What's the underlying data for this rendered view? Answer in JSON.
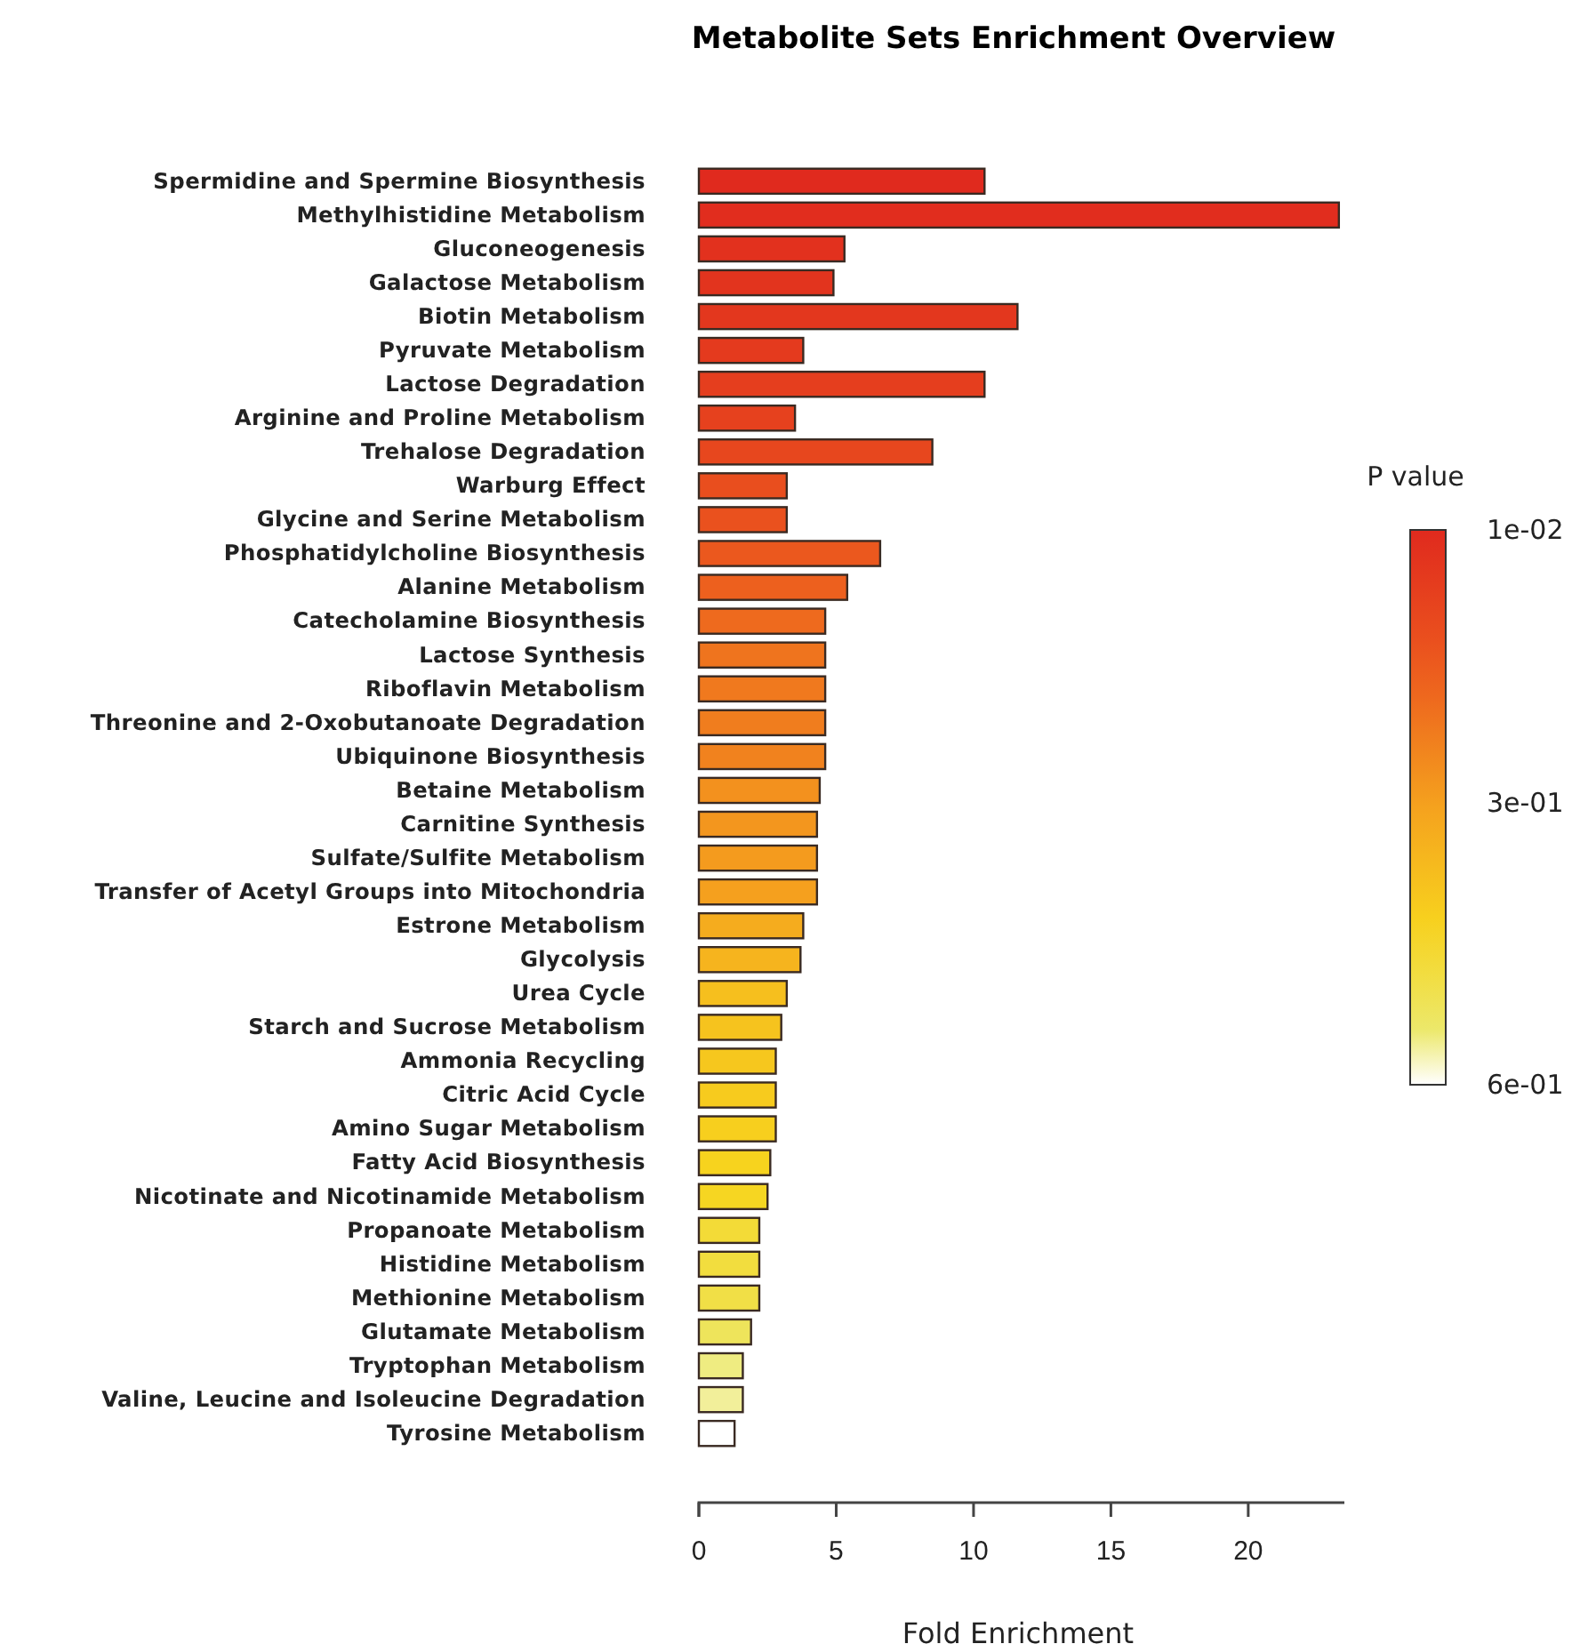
{
  "chart_data": {
    "type": "bar",
    "orientation": "horizontal",
    "title": "Metabolite Sets Enrichment Overview",
    "xlabel": "Fold Enrichment",
    "legend_title": "P value",
    "categories": [
      "Spermidine and Spermine Biosynthesis",
      "Methylhistidine Metabolism",
      "Gluconeogenesis",
      "Galactose Metabolism",
      "Biotin Metabolism",
      "Pyruvate Metabolism",
      "Lactose Degradation",
      "Arginine and Proline Metabolism",
      "Trehalose Degradation",
      "Warburg Effect",
      "Glycine and Serine Metabolism",
      "Phosphatidylcholine Biosynthesis",
      "Alanine Metabolism",
      "Catecholamine Biosynthesis",
      "Lactose Synthesis",
      "Riboflavin Metabolism",
      "Threonine and 2-Oxobutanoate Degradation",
      "Ubiquinone Biosynthesis",
      "Betaine Metabolism",
      "Carnitine Synthesis",
      "Sulfate/Sulfite Metabolism",
      "Transfer of Acetyl Groups into Mitochondria",
      "Estrone Metabolism",
      "Glycolysis",
      "Urea Cycle",
      "Starch and Sucrose Metabolism",
      "Ammonia Recycling",
      "Citric Acid Cycle",
      "Amino Sugar Metabolism",
      "Fatty Acid Biosynthesis",
      "Nicotinate and Nicotinamide Metabolism",
      "Propanoate Metabolism",
      "Histidine Metabolism",
      "Methionine Metabolism",
      "Glutamate Metabolism",
      "Tryptophan Metabolism",
      "Valine, Leucine and Isoleucine Degradation",
      "Tyrosine Metabolism"
    ],
    "values": [
      10.4,
      23.3,
      5.3,
      4.9,
      11.6,
      3.8,
      10.4,
      3.5,
      8.5,
      3.2,
      3.2,
      6.6,
      5.4,
      4.6,
      4.6,
      4.6,
      4.6,
      4.6,
      4.4,
      4.3,
      4.3,
      4.3,
      3.8,
      3.7,
      3.2,
      3.0,
      2.8,
      2.8,
      2.8,
      2.6,
      2.5,
      2.2,
      2.2,
      2.2,
      1.9,
      1.6,
      1.6,
      1.3
    ],
    "cvalues": [
      0.01,
      0.02,
      0.03,
      0.04,
      0.05,
      0.06,
      0.07,
      0.08,
      0.1,
      0.12,
      0.13,
      0.15,
      0.17,
      0.19,
      0.21,
      0.22,
      0.23,
      0.24,
      0.27,
      0.28,
      0.29,
      0.3,
      0.33,
      0.35,
      0.38,
      0.39,
      0.4,
      0.41,
      0.42,
      0.43,
      0.44,
      0.47,
      0.48,
      0.49,
      0.52,
      0.55,
      0.56,
      0.6
    ],
    "xlim": [
      0,
      23.5
    ],
    "xticks": [
      0,
      5,
      10,
      15,
      20
    ],
    "clim": [
      0.01,
      0.6
    ],
    "cticks": [
      {
        "value": 0.01,
        "label": "1e-02"
      },
      {
        "value": 0.3,
        "label": "3e-01"
      },
      {
        "value": 0.6,
        "label": "6e-01"
      }
    ],
    "grid": false
  }
}
